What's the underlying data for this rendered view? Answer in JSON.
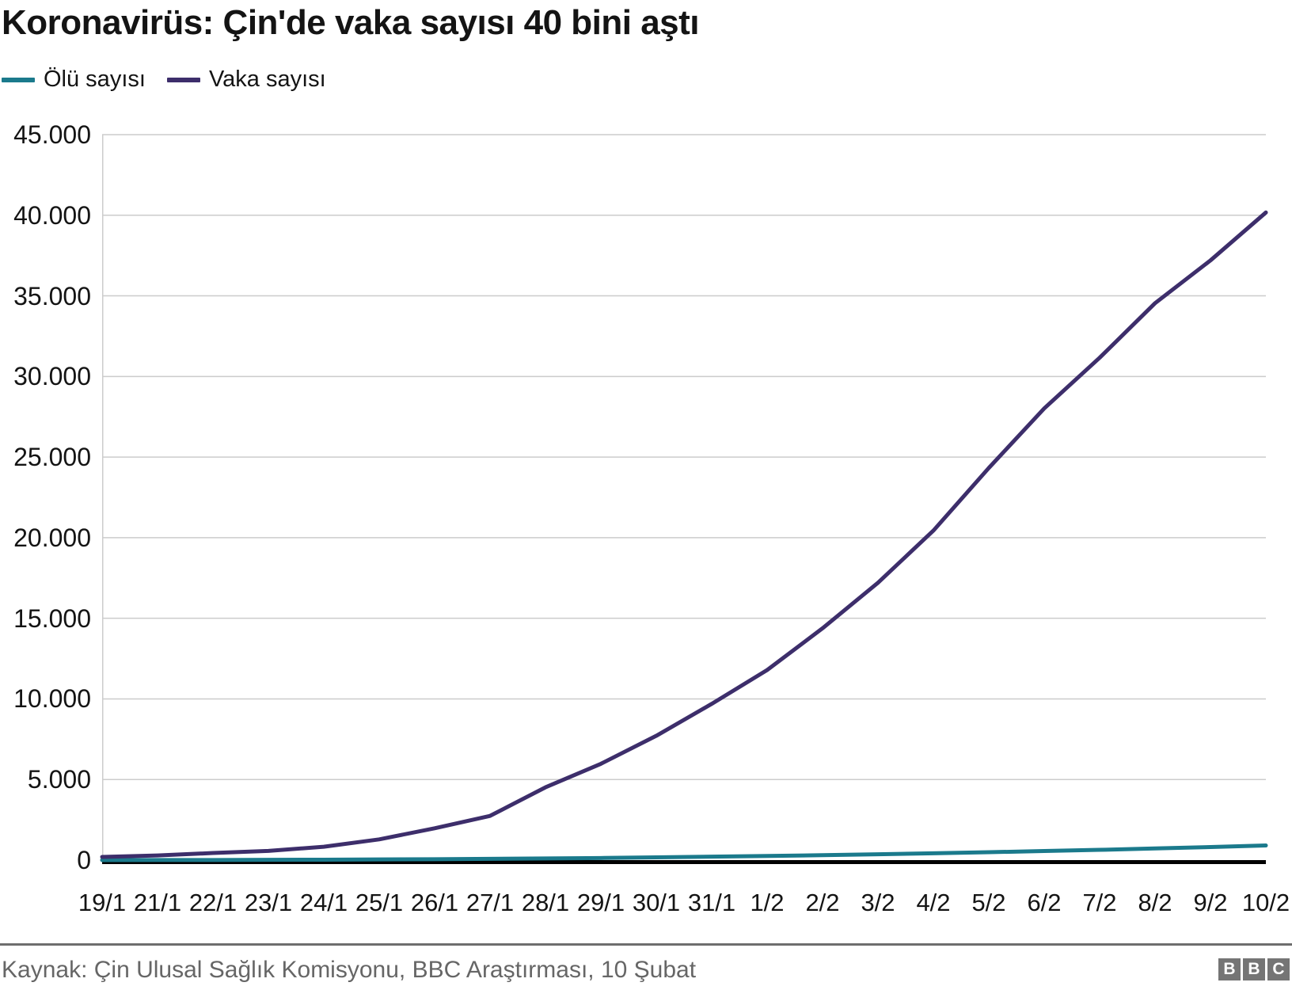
{
  "title": "Koronavirüs: Çin'de vaka sayısı 40 bini aştı",
  "legend": [
    {
      "label": "Ölü sayısı",
      "color": "#1B7A8C"
    },
    {
      "label": "Vaka sayısı",
      "color": "#3D2E6B"
    }
  ],
  "footer": {
    "source": "Kaynak: Çin Ulusal Sağlık Komisyonu, BBC Araştırması, 10 Şubat",
    "logo_letters": [
      "B",
      "B",
      "C"
    ]
  },
  "chart_data": {
    "type": "line",
    "title": "Koronavirüs: Çin'de vaka sayısı 40 bini aştı",
    "categories": [
      "19/1",
      "21/1",
      "22/1",
      "23/1",
      "24/1",
      "25/1",
      "26/1",
      "27/1",
      "28/1",
      "29/1",
      "30/1",
      "31/1",
      "1/2",
      "2/2",
      "3/2",
      "4/2",
      "5/2",
      "6/2",
      "7/2",
      "8/2",
      "9/2",
      "10/2"
    ],
    "series": [
      {
        "name": "Ölü sayısı",
        "color": "#1B7A8C",
        "values": [
          3,
          6,
          9,
          17,
          25,
          41,
          56,
          80,
          106,
          132,
          170,
          213,
          259,
          304,
          361,
          425,
          490,
          563,
          636,
          722,
          811,
          908
        ]
      },
      {
        "name": "Vaka sayısı",
        "color": "#3D2E6B",
        "values": [
          198,
          291,
          440,
          571,
          830,
          1287,
          1975,
          2744,
          4515,
          5974,
          7711,
          9692,
          11791,
          14380,
          17205,
          20438,
          24324,
          28018,
          31161,
          34546,
          37198,
          40171
        ]
      }
    ],
    "xlabel": "",
    "ylabel": "",
    "ylim": [
      0,
      45000
    ],
    "ytick_step": 5000,
    "ytick_labels": [
      "0",
      "5.000",
      "10.000",
      "15.000",
      "20.000",
      "25.000",
      "30.000",
      "35.000",
      "40.000",
      "45.000"
    ],
    "grid": true,
    "gridline_color": "#cccccc",
    "legend_position": "top-left"
  }
}
